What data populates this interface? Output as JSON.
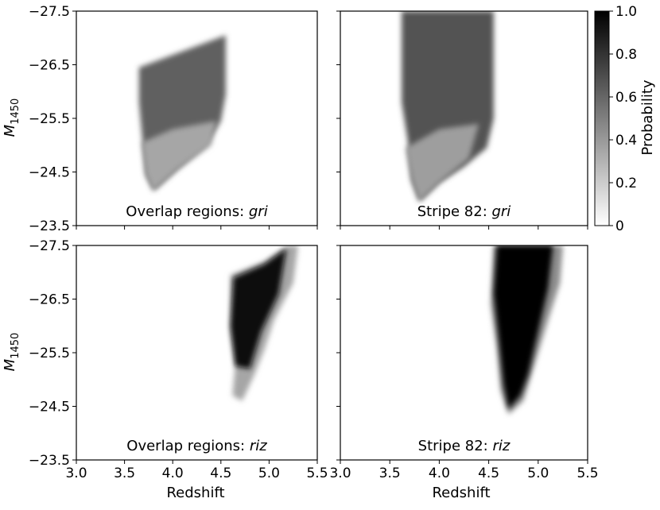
{
  "chart_data": [
    {
      "type": "heatmap",
      "label": "Overlap regions: ",
      "label_band": "gri",
      "xlim": [
        3.0,
        5.5
      ],
      "ylim": [
        -27.5,
        -23.5
      ],
      "x_ticks": [
        "3.0",
        "3.5",
        "4.0",
        "4.5",
        "5.0",
        "5.5"
      ],
      "y_ticks": [
        "−27.5",
        "−26.5",
        "−25.5",
        "−24.5",
        "−23.5"
      ],
      "regions": [
        {
          "polygon": [
            [
              3.65,
              -26.45
            ],
            [
              3.95,
              -26.65
            ],
            [
              4.25,
              -26.85
            ],
            [
              4.55,
              -27.05
            ],
            [
              4.55,
              -25.95
            ],
            [
              4.5,
              -25.45
            ],
            [
              4.35,
              -25.0
            ],
            [
              4.05,
              -24.55
            ],
            [
              3.8,
              -24.15
            ],
            [
              3.72,
              -24.45
            ],
            [
              3.68,
              -25.2
            ],
            [
              3.65,
              -25.8
            ]
          ],
          "probability": 0.62
        },
        {
          "polygon": [
            [
              3.68,
              -25.05
            ],
            [
              4.0,
              -25.3
            ],
            [
              4.45,
              -25.45
            ],
            [
              4.4,
              -25.0
            ],
            [
              4.05,
              -24.55
            ],
            [
              3.8,
              -24.15
            ],
            [
              3.72,
              -24.45
            ]
          ],
          "probability": 0.35
        }
      ]
    },
    {
      "type": "heatmap",
      "label": "Stripe 82: ",
      "label_band": "gri",
      "xlim": [
        3.0,
        5.5
      ],
      "ylim": [
        -27.5,
        -23.5
      ],
      "x_ticks": [
        "3.0",
        "3.5",
        "4.0",
        "4.5",
        "5.0",
        "5.5"
      ],
      "y_ticks": [
        "−27.5",
        "−26.5",
        "−25.5",
        "−24.5",
        "−23.5"
      ],
      "regions": [
        {
          "polygon": [
            [
              3.62,
              -27.5
            ],
            [
              4.55,
              -27.5
            ],
            [
              4.55,
              -25.5
            ],
            [
              4.48,
              -24.95
            ],
            [
              4.25,
              -24.6
            ],
            [
              4.0,
              -24.3
            ],
            [
              3.8,
              -23.95
            ],
            [
              3.72,
              -24.35
            ],
            [
              3.68,
              -25.1
            ],
            [
              3.62,
              -25.8
            ]
          ],
          "probability": 0.68
        },
        {
          "polygon": [
            [
              3.66,
              -24.95
            ],
            [
              4.0,
              -25.3
            ],
            [
              4.4,
              -25.4
            ],
            [
              4.3,
              -24.75
            ],
            [
              4.0,
              -24.3
            ],
            [
              3.8,
              -23.95
            ],
            [
              3.72,
              -24.35
            ]
          ],
          "probability": 0.38
        }
      ]
    },
    {
      "type": "heatmap",
      "label": "Overlap regions: ",
      "label_band": "riz",
      "xlim": [
        3.0,
        5.5
      ],
      "ylim": [
        -27.5,
        -23.5
      ],
      "x_ticks": [
        "3.0",
        "3.5",
        "4.0",
        "4.5",
        "5.0",
        "5.5"
      ],
      "y_ticks": [
        "−27.5",
        "−26.5",
        "−25.5",
        "−24.5",
        "−23.5"
      ],
      "regions": [
        {
          "polygon": [
            [
              4.6,
              -26.95
            ],
            [
              4.95,
              -27.2
            ],
            [
              5.2,
              -27.5
            ],
            [
              5.3,
              -27.5
            ],
            [
              5.25,
              -26.8
            ],
            [
              5.05,
              -26.1
            ],
            [
              4.95,
              -25.55
            ],
            [
              4.85,
              -25.1
            ],
            [
              4.72,
              -24.6
            ],
            [
              4.62,
              -24.7
            ],
            [
              4.65,
              -25.3
            ],
            [
              4.6,
              -25.9
            ]
          ],
          "probability": 0.35
        },
        {
          "polygon": [
            [
              4.63,
              -26.9
            ],
            [
              4.95,
              -27.15
            ],
            [
              5.18,
              -27.45
            ],
            [
              5.1,
              -26.6
            ],
            [
              4.92,
              -25.9
            ],
            [
              4.8,
              -25.2
            ],
            [
              4.65,
              -25.25
            ],
            [
              4.6,
              -26.0
            ]
          ],
          "probability": 0.97
        }
      ]
    },
    {
      "type": "heatmap",
      "label": "Stripe 82: ",
      "label_band": "riz",
      "xlim": [
        3.0,
        5.5
      ],
      "ylim": [
        -27.5,
        -23.5
      ],
      "x_ticks": [
        "3.0",
        "3.5",
        "4.0",
        "4.5",
        "5.0",
        "5.5"
      ],
      "y_ticks": [
        "−27.5",
        "−26.5",
        "−25.5",
        "−24.5",
        "−23.5"
      ],
      "regions": [
        {
          "polygon": [
            [
              4.55,
              -27.5
            ],
            [
              5.25,
              -27.5
            ],
            [
              5.22,
              -26.8
            ],
            [
              5.1,
              -26.1
            ],
            [
              4.95,
              -25.2
            ],
            [
              4.85,
              -24.6
            ],
            [
              4.7,
              -24.35
            ],
            [
              4.62,
              -24.8
            ],
            [
              4.58,
              -25.6
            ],
            [
              4.52,
              -26.4
            ]
          ],
          "probability": 0.45
        },
        {
          "polygon": [
            [
              4.58,
              -27.5
            ],
            [
              5.15,
              -27.5
            ],
            [
              5.1,
              -26.7
            ],
            [
              5.0,
              -25.9
            ],
            [
              4.9,
              -25.1
            ],
            [
              4.82,
              -24.7
            ],
            [
              4.7,
              -24.45
            ],
            [
              4.65,
              -24.9
            ],
            [
              4.6,
              -25.8
            ],
            [
              4.55,
              -26.6
            ]
          ],
          "probability": 0.98
        }
      ]
    }
  ],
  "axes": {
    "xlabel": "Redshift",
    "ylabel_main": "M",
    "ylabel_sub": "1450"
  },
  "colorbar": {
    "label": "Probability",
    "range": [
      0,
      1
    ],
    "ticks": [
      "0",
      "0.2",
      "0.4",
      "0.6",
      "0.8",
      "1.0"
    ],
    "colormap": [
      "#ffffff",
      "#000000"
    ]
  }
}
